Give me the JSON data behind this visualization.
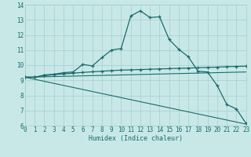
{
  "xlabel": "Humidex (Indice chaleur)",
  "xlim": [
    0,
    23
  ],
  "ylim": [
    6,
    14
  ],
  "yticks": [
    6,
    7,
    8,
    9,
    10,
    11,
    12,
    13,
    14
  ],
  "xticks": [
    0,
    1,
    2,
    3,
    4,
    5,
    6,
    7,
    8,
    9,
    10,
    11,
    12,
    13,
    14,
    15,
    16,
    17,
    18,
    19,
    20,
    21,
    22,
    23
  ],
  "bg": "#c8e8e8",
  "grid_color": "#a8cccc",
  "lc": "#1a6b6b",
  "line1_x": [
    0,
    1,
    2,
    3,
    4,
    5,
    6,
    7,
    8,
    9,
    10,
    11,
    12,
    13,
    14,
    15,
    16,
    17,
    18,
    19,
    20,
    21,
    22,
    23
  ],
  "line1_y": [
    9.2,
    9.2,
    9.35,
    9.4,
    9.5,
    9.55,
    10.05,
    9.95,
    10.5,
    11.0,
    11.1,
    13.25,
    13.6,
    13.15,
    13.2,
    11.7,
    11.05,
    10.55,
    9.6,
    9.55,
    8.65,
    7.4,
    7.1,
    6.15
  ],
  "line2_x": [
    0,
    1,
    2,
    3,
    4,
    5,
    6,
    7,
    8,
    9,
    10,
    11,
    12,
    13,
    14,
    15,
    16,
    17,
    18,
    19,
    20,
    21,
    22,
    23
  ],
  "line2_y": [
    9.2,
    9.2,
    9.3,
    9.38,
    9.42,
    9.47,
    9.52,
    9.56,
    9.6,
    9.64,
    9.67,
    9.69,
    9.71,
    9.73,
    9.75,
    9.77,
    9.79,
    9.81,
    9.83,
    9.85,
    9.87,
    9.9,
    9.92,
    9.93
  ],
  "line3_x": [
    0,
    23
  ],
  "line3_y": [
    9.2,
    9.55
  ],
  "line4_x": [
    0,
    23
  ],
  "line4_y": [
    9.2,
    6.1
  ]
}
